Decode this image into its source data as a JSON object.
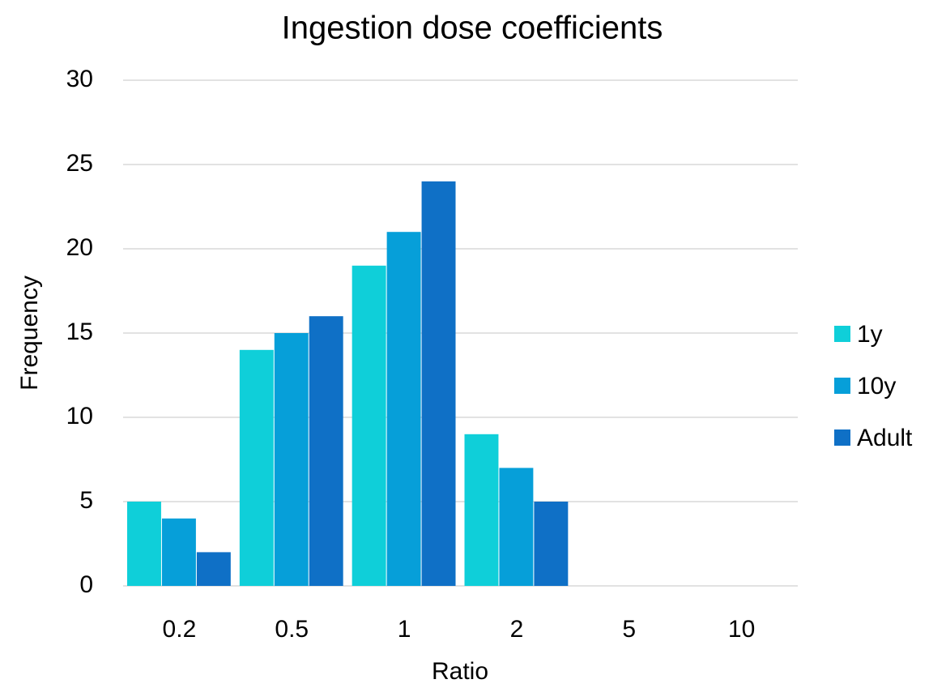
{
  "chart_data": {
    "type": "bar",
    "title": "Ingestion dose coefficients",
    "x_label": "Ratio",
    "y_label": "Frequency",
    "categories": [
      "0.2",
      "0.5",
      "1",
      "2",
      "5",
      "10"
    ],
    "series": [
      {
        "name": "1y",
        "color": "#0fcfd9",
        "values": [
          5,
          14,
          19,
          9,
          0,
          0
        ]
      },
      {
        "name": "10y",
        "color": "#069fd9",
        "values": [
          4,
          15,
          21,
          7,
          0,
          0
        ]
      },
      {
        "name": "Adult",
        "color": "#0f70c6",
        "values": [
          2,
          16,
          24,
          5,
          0,
          0
        ]
      }
    ],
    "ylim": [
      0,
      30
    ],
    "yticks": [
      0,
      5,
      10,
      15,
      20,
      25,
      30
    ],
    "grid": true,
    "legend": "right"
  }
}
